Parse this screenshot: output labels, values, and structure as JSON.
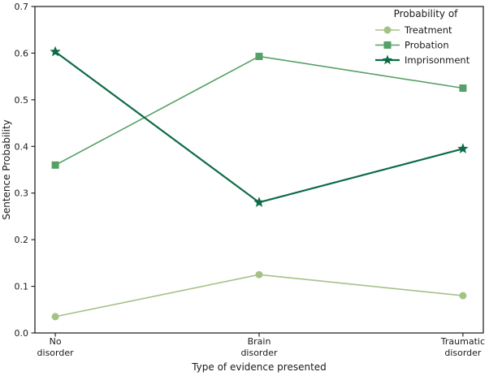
{
  "figure": {
    "background": "#ffffff",
    "text_color": "#1a1a1a",
    "spine_color": "#262626"
  },
  "chart_data": {
    "type": "line",
    "title": "",
    "xlabel": "Type of evidence presented",
    "ylabel": "Sentence Probability",
    "categories": [
      "No\ndisorder",
      "Brain\ndisorder",
      "Traumatic\ndisorder"
    ],
    "series": [
      {
        "name": "Treatment",
        "values": [
          0.035,
          0.125,
          0.08
        ],
        "color": "#a5c285",
        "marker": "circle",
        "linewidth": 1.6
      },
      {
        "name": "Probation",
        "values": [
          0.36,
          0.593,
          0.525
        ],
        "color": "#55a066",
        "marker": "square",
        "linewidth": 1.6
      },
      {
        "name": "Imprisonment",
        "values": [
          0.603,
          0.28,
          0.395
        ],
        "color": "#0e6b45",
        "marker": "star",
        "linewidth": 2.2
      }
    ],
    "legend": {
      "title": "Probability of",
      "position": "upper-right",
      "frame": false
    },
    "ylim": [
      0,
      0.7
    ],
    "yticks": [
      0.0,
      0.1,
      0.2,
      0.3,
      0.4,
      0.5,
      0.6,
      0.7
    ],
    "grid": false
  }
}
